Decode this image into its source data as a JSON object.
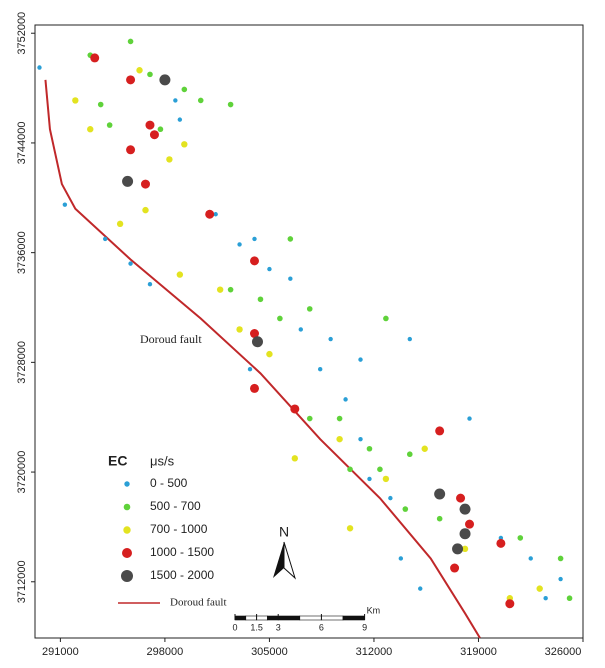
{
  "chart_data": {
    "type": "scatter",
    "xlim": [
      289300,
      326000
    ],
    "ylim": [
      3707900,
      3752600
    ],
    "xticks": [
      291000,
      298000,
      305000,
      312000,
      319000,
      326000
    ],
    "yticks": [
      3712000,
      3720000,
      3728000,
      3736000,
      3744000,
      3752000
    ],
    "legend_title": "EC",
    "legend_unit": "μs/s",
    "north": "N",
    "scale_bar": {
      "ticks": [
        0,
        1.5,
        3,
        6,
        9
      ],
      "unit": "Km"
    },
    "series": [
      {
        "name": "0 - 500",
        "color": "#2a9fd6",
        "x": [
          289600,
          291300,
          294000,
          295700,
          297000,
          299000,
          298700,
          301400,
          303000,
          304000,
          305000,
          306400,
          307100,
          308400,
          310100,
          311100,
          311700,
          313100,
          313800,
          315100,
          318400,
          320500,
          322500,
          323500,
          324500,
          303700,
          309100,
          311100,
          314400
        ],
        "y": [
          3749500,
          3739500,
          3737000,
          3735200,
          3733700,
          3745700,
          3747100,
          3738800,
          3736600,
          3737000,
          3734800,
          3734100,
          3730400,
          3727500,
          3725300,
          3722400,
          3719500,
          3718100,
          3713700,
          3711500,
          3723900,
          3715200,
          3713700,
          3710800,
          3712200,
          3727500,
          3729700,
          3728200,
          3729700
        ]
      },
      {
        "name": "500 - 700",
        "color": "#5fd23a",
        "x": [
          293000,
          295700,
          297000,
          299300,
          300400,
          302400,
          297700,
          294300,
          304400,
          305700,
          307700,
          306400,
          309700,
          311700,
          312400,
          314100,
          316400,
          321800,
          324500,
          325100,
          307700,
          310400,
          312800,
          302400,
          293700,
          314400
        ],
        "y": [
          3750400,
          3751400,
          3749000,
          3747900,
          3747100,
          3746800,
          3745000,
          3745300,
          3732600,
          3731200,
          3731900,
          3737000,
          3723900,
          3721700,
          3720200,
          3717300,
          3716600,
          3715200,
          3713700,
          3710800,
          3723900,
          3720200,
          3731200,
          3733300,
          3746800,
          3721300
        ]
      },
      {
        "name": "700 - 1000",
        "color": "#e3e320",
        "x": [
          292000,
          296300,
          298300,
          299300,
          296700,
          295000,
          299000,
          303000,
          305000,
          306700,
          309700,
          312800,
          315400,
          318100,
          321100,
          323100,
          293000,
          301700,
          310400
        ],
        "y": [
          3747100,
          3749300,
          3742800,
          3743900,
          3739100,
          3738100,
          3734400,
          3730400,
          3728600,
          3721000,
          3722400,
          3719500,
          3721700,
          3714400,
          3710800,
          3711500,
          3745000,
          3733300,
          3715900
        ]
      },
      {
        "name": "1000 - 1500",
        "color": "#d61f1f",
        "x": [
          293300,
          295700,
          297000,
          297300,
          296700,
          301000,
          304000,
          304000,
          304000,
          306700,
          316400,
          317800,
          318400,
          320500,
          321100,
          317400,
          295700
        ],
        "y": [
          3750200,
          3748600,
          3745300,
          3744600,
          3741000,
          3738800,
          3735400,
          3730100,
          3726100,
          3724600,
          3723000,
          3718100,
          3716200,
          3714800,
          3710400,
          3713000,
          3743500
        ]
      },
      {
        "name": "1500 - 2000",
        "color": "#4a4a4a",
        "x": [
          298000,
          295500,
          304200,
          316400,
          318100,
          317600,
          318100
        ],
        "y": [
          3748600,
          3741200,
          3729500,
          3718400,
          3717300,
          3714400,
          3715500
        ]
      }
    ],
    "fault": {
      "name": "Doroud fault",
      "label": "Doroud fault",
      "color": "#c0282a",
      "x": [
        290000,
        290300,
        291100,
        292000,
        295700,
        300400,
        304400,
        308400,
        312400,
        315800,
        318100,
        319100
      ],
      "y": [
        3748600,
        3745000,
        3741000,
        3739200,
        3735500,
        3731200,
        3727200,
        3722400,
        3718100,
        3713700,
        3709700,
        3707900
      ]
    }
  }
}
